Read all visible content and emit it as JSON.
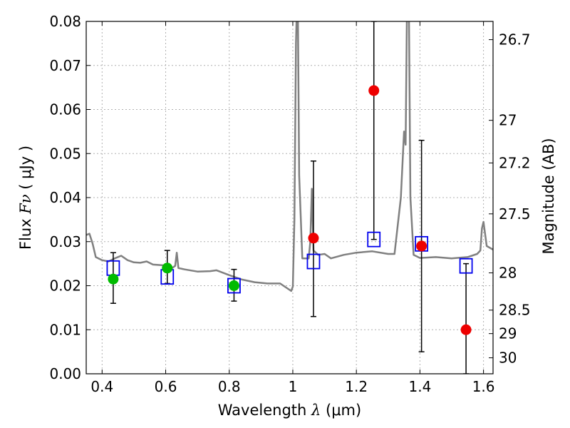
{
  "chart_data": {
    "type": "scatter",
    "x_axis": {
      "label_prefix": "Wavelength  ",
      "label_symbol": "λ",
      "label_suffix": " (μm)",
      "range": [
        0.35,
        1.63
      ],
      "ticks": [
        0.4,
        0.6,
        0.8,
        1.0,
        1.2,
        1.4,
        1.6
      ],
      "tick_labels": [
        "0.4",
        "0.6",
        "0.8",
        "1",
        "1.2",
        "1.4",
        "1.6"
      ]
    },
    "y_axis": {
      "label_prefix": "Flux  ",
      "label_symbol": "Fν",
      "label_suffix": "  ( μJy )",
      "range": [
        0.0,
        0.08
      ],
      "ticks": [
        0.0,
        0.01,
        0.02,
        0.03,
        0.04,
        0.05,
        0.06,
        0.07,
        0.08
      ],
      "tick_labels": [
        "0.00",
        "0.01",
        "0.02",
        "0.03",
        "0.04",
        "0.05",
        "0.06",
        "0.07",
        "0.08"
      ]
    },
    "y2_axis": {
      "label": "Magnitude (AB)",
      "ticks": [
        26.7,
        27.0,
        27.2,
        27.5,
        28.0,
        28.5,
        29.0,
        30.0
      ],
      "tick_labels": [
        "26.7",
        "27",
        "27.2",
        "27.5",
        "28",
        "28.5",
        "29",
        "30"
      ]
    },
    "grid": true,
    "series": [
      {
        "name": "model_spectrum",
        "kind": "line",
        "color": "#808080",
        "x": [
          0.35,
          0.36,
          0.37,
          0.38,
          0.4,
          0.42,
          0.44,
          0.46,
          0.48,
          0.5,
          0.52,
          0.54,
          0.56,
          0.58,
          0.6,
          0.62,
          0.63,
          0.635,
          0.64,
          0.66,
          0.7,
          0.74,
          0.76,
          0.8,
          0.84,
          0.88,
          0.92,
          0.96,
          0.995,
          1.0,
          1.005,
          1.01,
          1.015,
          1.02,
          1.03,
          1.05,
          1.055,
          1.06,
          1.065,
          1.08,
          1.1,
          1.12,
          1.16,
          1.2,
          1.25,
          1.3,
          1.32,
          1.34,
          1.35,
          1.355,
          1.36,
          1.365,
          1.37,
          1.38,
          1.4,
          1.45,
          1.5,
          1.55,
          1.58,
          1.59,
          1.595,
          1.6,
          1.61,
          1.63
        ],
        "y": [
          0.0315,
          0.0318,
          0.0296,
          0.0265,
          0.0258,
          0.0255,
          0.0262,
          0.0268,
          0.0258,
          0.0253,
          0.0252,
          0.0255,
          0.0248,
          0.0247,
          0.0246,
          0.024,
          0.0245,
          0.0275,
          0.024,
          0.0237,
          0.0232,
          0.0233,
          0.0235,
          0.0224,
          0.0214,
          0.0208,
          0.0205,
          0.0205,
          0.0188,
          0.0198,
          0.035,
          0.075,
          0.09,
          0.045,
          0.0262,
          0.0262,
          0.03,
          0.042,
          0.028,
          0.027,
          0.0272,
          0.0262,
          0.027,
          0.0275,
          0.0278,
          0.0272,
          0.0272,
          0.04,
          0.055,
          0.052,
          0.09,
          0.085,
          0.04,
          0.027,
          0.0263,
          0.0265,
          0.0262,
          0.0265,
          0.0272,
          0.028,
          0.033,
          0.0345,
          0.029,
          0.0282
        ]
      },
      {
        "name": "observed_detections",
        "kind": "points",
        "color": "#00bb00",
        "points": [
          {
            "x": 0.435,
            "y": 0.0215,
            "err_low": 0.016,
            "err_high": 0.0275
          },
          {
            "x": 0.605,
            "y": 0.024,
            "err_low": 0.0205,
            "err_high": 0.028
          },
          {
            "x": 0.815,
            "y": 0.02,
            "err_low": 0.0165,
            "err_high": 0.0237
          }
        ]
      },
      {
        "name": "observed_nondetections",
        "kind": "points",
        "color": "#ee0000",
        "points": [
          {
            "x": 1.065,
            "y": 0.0308,
            "err_low": 0.013,
            "err_high": 0.0483
          },
          {
            "x": 1.255,
            "y": 0.0643,
            "err_low": 0.0305,
            "err_high": 0.08
          },
          {
            "x": 1.405,
            "y": 0.029,
            "err_low": 0.005,
            "err_high": 0.053
          },
          {
            "x": 1.545,
            "y": 0.01,
            "err_low": 0.0,
            "err_high": 0.025
          }
        ]
      },
      {
        "name": "model_photometry",
        "kind": "squares",
        "color": "#0000ee",
        "points": [
          {
            "x": 0.435,
            "y": 0.024
          },
          {
            "x": 0.605,
            "y": 0.022
          },
          {
            "x": 0.815,
            "y": 0.02
          },
          {
            "x": 1.065,
            "y": 0.0255
          },
          {
            "x": 1.255,
            "y": 0.0305
          },
          {
            "x": 1.405,
            "y": 0.0295
          },
          {
            "x": 1.545,
            "y": 0.0245
          }
        ]
      }
    ]
  }
}
